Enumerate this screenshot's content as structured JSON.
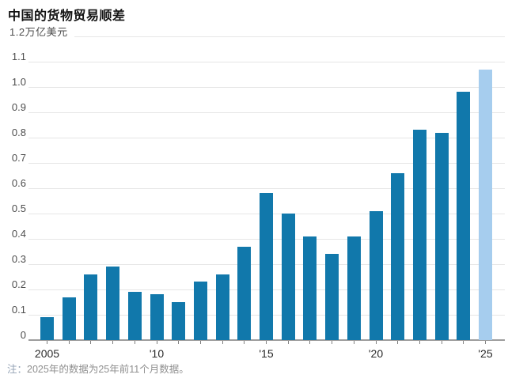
{
  "title": "中国的货物贸易顺差",
  "y_axis": {
    "unit_label": "1.2万亿美元",
    "ticks": [
      "1.1",
      "1.0",
      "0.9",
      "0.8",
      "0.7",
      "0.6",
      "0.5",
      "0.4",
      "0.3",
      "0.2",
      "0.1",
      "0"
    ]
  },
  "x_axis": {
    "labels": [
      {
        "text": "2005",
        "index": 0
      },
      {
        "text": "'10",
        "index": 5
      },
      {
        "text": "'15",
        "index": 10
      },
      {
        "text": "'20",
        "index": 15
      },
      {
        "text": "'25",
        "index": 20
      }
    ]
  },
  "note": {
    "prefix": "注：",
    "text": "2025年的数据为25年前11个月数据。"
  },
  "colors": {
    "bar": "#1178ab",
    "bar_highlight": "#a6cdee",
    "gridline": "#e6e6e6",
    "axis": "#9d9d9d"
  },
  "chart_data": {
    "type": "bar",
    "title": "中国的货物贸易顺差",
    "unit": "万亿美元",
    "categories": [
      2005,
      2006,
      2007,
      2008,
      2009,
      2010,
      2011,
      2012,
      2013,
      2014,
      2015,
      2016,
      2017,
      2018,
      2019,
      2020,
      2021,
      2022,
      2023,
      2024,
      2025
    ],
    "values": [
      0.09,
      0.17,
      0.26,
      0.29,
      0.19,
      0.18,
      0.15,
      0.23,
      0.26,
      0.37,
      0.58,
      0.5,
      0.41,
      0.34,
      0.41,
      0.51,
      0.66,
      0.83,
      0.82,
      0.98,
      1.07
    ],
    "highlighted_category": 2025,
    "ylim": [
      0,
      1.2
    ],
    "ytick_step": 0.1,
    "grid": true,
    "legend": false,
    "note": "注：2025年的数据为25年前11个月数据。"
  }
}
